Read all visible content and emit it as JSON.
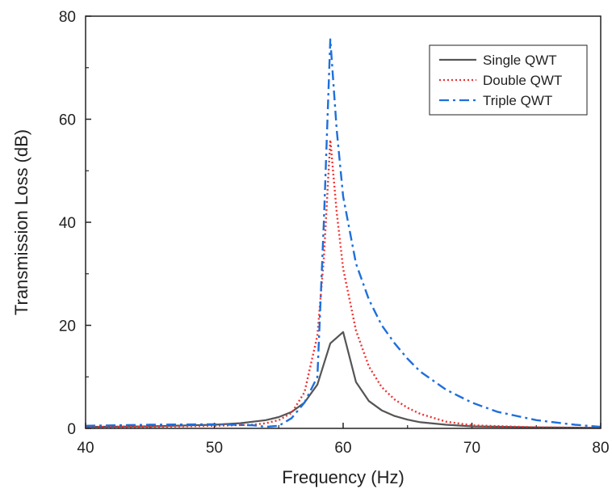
{
  "chart_data": {
    "type": "line",
    "xlabel": "Frequency (Hz)",
    "ylabel": "Transmission Loss (dB)",
    "xlim": [
      40,
      80
    ],
    "ylim": [
      0,
      80
    ],
    "xticks": [
      40,
      50,
      60,
      70,
      80
    ],
    "yticks": [
      0,
      20,
      40,
      60,
      80
    ],
    "legend_position": "top-right",
    "series": [
      {
        "name": "Single QWT",
        "color": "#555555",
        "style": "solid",
        "x": [
          40,
          45,
          50,
          52,
          54,
          55,
          56,
          57,
          58,
          59,
          60,
          61,
          62,
          63,
          64,
          65,
          66,
          68,
          70,
          75,
          80
        ],
        "y": [
          0.3,
          0.4,
          0.7,
          1.0,
          1.6,
          2.2,
          3.2,
          5.0,
          8.5,
          16.5,
          18.7,
          9.0,
          5.3,
          3.5,
          2.4,
          1.7,
          1.2,
          0.7,
          0.4,
          0.2,
          0.1
        ]
      },
      {
        "name": "Double QWT",
        "color": "#ee3333",
        "style": "dotted",
        "x": [
          40,
          45,
          50,
          53,
          54,
          55,
          56,
          57,
          58,
          58.5,
          59,
          59.5,
          60,
          61,
          62,
          63,
          64,
          65,
          66,
          68,
          70,
          75,
          80
        ],
        "y": [
          0.2,
          0.3,
          0.5,
          0.7,
          1.0,
          1.6,
          3.0,
          7.0,
          18.0,
          33.0,
          56.0,
          42.0,
          31.0,
          19.0,
          12.0,
          8.0,
          5.6,
          4.0,
          2.8,
          1.3,
          0.6,
          0.2,
          0.1
        ]
      },
      {
        "name": "Triple QWT",
        "color": "#1f6fdb",
        "style": "dashdot",
        "x": [
          40,
          45,
          50,
          53,
          54,
          55,
          56,
          57,
          58,
          58.5,
          59,
          59.5,
          60,
          61,
          62,
          63,
          64,
          65,
          66,
          68,
          70,
          72,
          75,
          78,
          80
        ],
        "y": [
          0.5,
          0.7,
          0.8,
          0.6,
          0.3,
          0.5,
          2.0,
          5.0,
          10.0,
          40.0,
          75.5,
          58.0,
          45.0,
          32.0,
          25.0,
          20.0,
          16.5,
          13.5,
          11.0,
          7.5,
          5.0,
          3.2,
          1.6,
          0.7,
          0.3
        ]
      }
    ]
  }
}
